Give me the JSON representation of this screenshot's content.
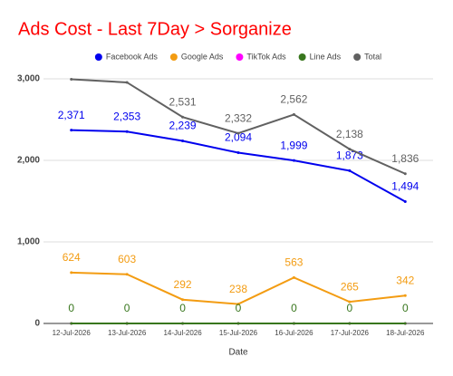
{
  "chart_data": {
    "type": "line",
    "title": "Ads Cost - Last 7Day > Sorganize",
    "x_label": "Date",
    "categories": [
      "12-Jul-2026",
      "13-Jul-2026",
      "14-Jul-2026",
      "15-Jul-2026",
      "16-Jul-2026",
      "17-Jul-2026",
      "18-Jul-2026"
    ],
    "ylim": [
      0,
      3000
    ],
    "yticks": [
      0,
      {
        "value": 1000,
        "label": "1,000"
      },
      {
        "value": 2000,
        "label": "2,000"
      },
      {
        "value": 3000,
        "label": "3,000"
      }
    ],
    "grid": true,
    "legend": "top",
    "series": [
      {
        "name": "Facebook Ads",
        "color": "#0000ee",
        "values": [
          2371,
          2353,
          2239,
          2094,
          1999,
          1873,
          1494
        ],
        "value_labels": [
          "2,371",
          "2,353",
          "2,239",
          "2,094",
          "1,999",
          "1,873",
          "1,494"
        ],
        "data_labels": true
      },
      {
        "name": "Google Ads",
        "color": "#f39c12",
        "values": [
          624,
          603,
          292,
          238,
          563,
          265,
          342
        ],
        "data_labels": true
      },
      {
        "name": "TikTok Ads",
        "color": "#ff00ff",
        "values": [
          0,
          0,
          0,
          0,
          0,
          0,
          0
        ],
        "data_labels": false
      },
      {
        "name": "Line Ads",
        "color": "#38761d",
        "values": [
          0,
          0,
          0,
          0,
          0,
          0,
          0
        ],
        "data_labels": true
      },
      {
        "name": "Total",
        "color": "#616161",
        "values": [
          2995,
          2956,
          2531,
          2332,
          2562,
          2138,
          1836
        ],
        "value_labels": [
          null,
          null,
          "2,531",
          "2,332",
          "2,562",
          "2,138",
          "1,836"
        ],
        "data_labels": true
      }
    ]
  }
}
